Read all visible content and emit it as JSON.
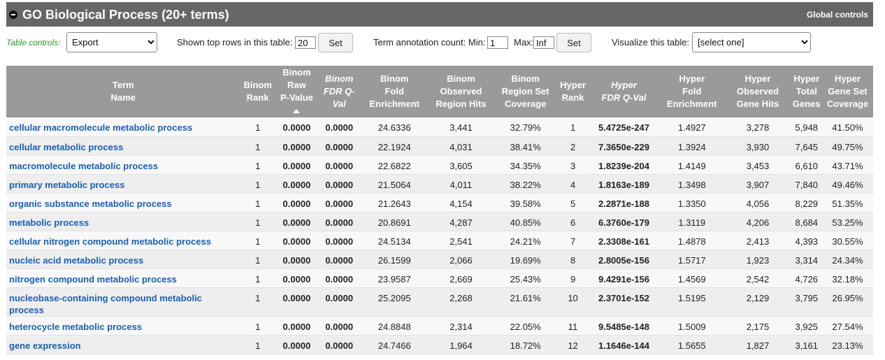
{
  "header": {
    "title": "GO Biological Process (20+ terms)",
    "global_controls": "Global controls"
  },
  "controls": {
    "table_controls_label": "Table controls:",
    "export_select": "Export",
    "shown_rows_label": "Shown top rows in this table:",
    "shown_rows_value": "20",
    "set_label": "Set",
    "annotation_label": "Term annotation count: Min:",
    "min_value": "1",
    "max_label": "Max:",
    "max_value": "Inf",
    "visualize_label": "Visualize this table:",
    "visualize_select": "[select one]"
  },
  "columns": [
    {
      "l1": "Term",
      "l2": "Name",
      "l3": "",
      "italic": false
    },
    {
      "l1": "Binom",
      "l2": "Rank",
      "l3": "",
      "italic": false
    },
    {
      "l1": "Binom",
      "l2": "Raw",
      "l3": "P-Value",
      "italic": false,
      "sorted": true
    },
    {
      "l1": "Binom",
      "l2": "FDR Q-Val",
      "l3": "",
      "italic": true
    },
    {
      "l1": "Binom",
      "l2": "Fold",
      "l3": "Enrichment",
      "italic": false
    },
    {
      "l1": "Binom",
      "l2": "Observed",
      "l3": "Region Hits",
      "italic": false
    },
    {
      "l1": "Binom",
      "l2": "Region Set",
      "l3": "Coverage",
      "italic": false
    },
    {
      "l1": "Hyper",
      "l2": "Rank",
      "l3": "",
      "italic": false
    },
    {
      "l1": "Hyper",
      "l2": "FDR Q-Val",
      "l3": "",
      "italic": true
    },
    {
      "l1": "Hyper",
      "l2": "Fold",
      "l3": "Enrichment",
      "italic": false
    },
    {
      "l1": "Hyper",
      "l2": "Observed",
      "l3": "Gene Hits",
      "italic": false
    },
    {
      "l1": "Hyper",
      "l2": "Total",
      "l3": "Genes",
      "italic": false
    },
    {
      "l1": "Hyper",
      "l2": "Gene Set",
      "l3": "Coverage",
      "italic": false
    }
  ],
  "rows": [
    [
      "cellular macromolecule metabolic process",
      "1",
      "0.0000",
      "0.0000",
      "24.6336",
      "3,441",
      "32.79%",
      "1",
      "5.4725e-247",
      "1.4927",
      "3,278",
      "5,948",
      "41.50%"
    ],
    [
      "cellular metabolic process",
      "1",
      "0.0000",
      "0.0000",
      "22.1924",
      "4,031",
      "38.41%",
      "2",
      "7.3650e-229",
      "1.3924",
      "3,930",
      "7,645",
      "49.75%"
    ],
    [
      "macromolecule metabolic process",
      "1",
      "0.0000",
      "0.0000",
      "22.6822",
      "3,605",
      "34.35%",
      "3",
      "1.8239e-204",
      "1.4149",
      "3,453",
      "6,610",
      "43.71%"
    ],
    [
      "primary metabolic process",
      "1",
      "0.0000",
      "0.0000",
      "21.5064",
      "4,011",
      "38.22%",
      "4",
      "1.8163e-189",
      "1.3498",
      "3,907",
      "7,840",
      "49.46%"
    ],
    [
      "organic substance metabolic process",
      "1",
      "0.0000",
      "0.0000",
      "21.2643",
      "4,154",
      "39.58%",
      "5",
      "2.2871e-188",
      "1.3350",
      "4,056",
      "8,229",
      "51.35%"
    ],
    [
      "metabolic process",
      "1",
      "0.0000",
      "0.0000",
      "20.8691",
      "4,287",
      "40.85%",
      "6",
      "6.3760e-179",
      "1.3119",
      "4,206",
      "8,684",
      "53.25%"
    ],
    [
      "cellular nitrogen compound metabolic process",
      "1",
      "0.0000",
      "0.0000",
      "24.5134",
      "2,541",
      "24.21%",
      "7",
      "2.3308e-161",
      "1.4878",
      "2,413",
      "4,393",
      "30.55%"
    ],
    [
      "nucleic acid metabolic process",
      "1",
      "0.0000",
      "0.0000",
      "26.1599",
      "2,066",
      "19.69%",
      "8",
      "2.8005e-156",
      "1.5717",
      "1,923",
      "3,314",
      "24.34%"
    ],
    [
      "nitrogen compound metabolic process",
      "1",
      "0.0000",
      "0.0000",
      "23.9587",
      "2,669",
      "25.43%",
      "9",
      "9.4291e-156",
      "1.4569",
      "2,542",
      "4,726",
      "32.18%"
    ],
    [
      "nucleobase-containing compound metabolic process",
      "1",
      "0.0000",
      "0.0000",
      "25.2095",
      "2,268",
      "21.61%",
      "10",
      "2.3701e-152",
      "1.5195",
      "2,129",
      "3,795",
      "26.95%"
    ],
    [
      "heterocycle metabolic process",
      "1",
      "0.0000",
      "0.0000",
      "24.8848",
      "2,314",
      "22.05%",
      "11",
      "9.5485e-148",
      "1.5009",
      "2,175",
      "3,925",
      "27.54%"
    ],
    [
      "gene expression",
      "1",
      "0.0000",
      "0.0000",
      "24.7466",
      "1,964",
      "18.72%",
      "12",
      "1.1646e-144",
      "1.5655",
      "1,827",
      "3,161",
      "23.13%"
    ]
  ]
}
